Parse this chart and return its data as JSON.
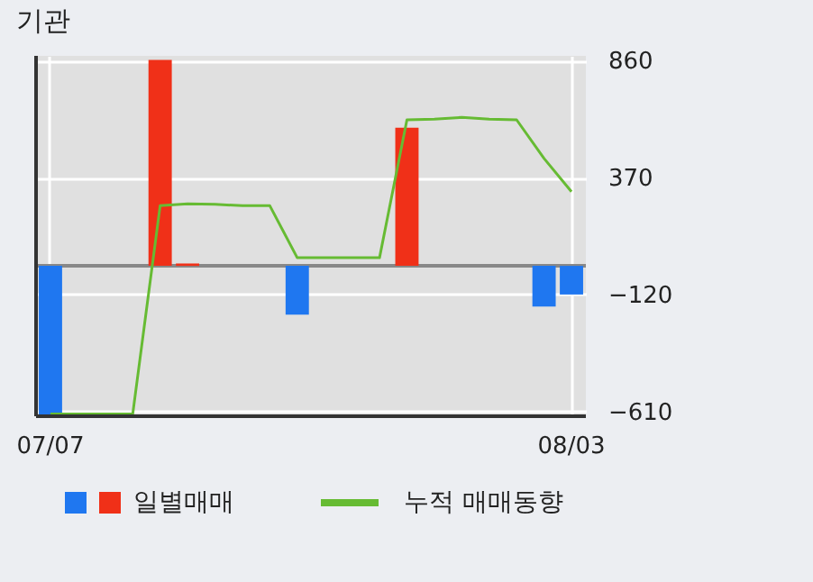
{
  "chart_data": {
    "type": "bar",
    "title": "기관",
    "categories": [
      "07/07",
      null,
      null,
      null,
      null,
      null,
      null,
      null,
      null,
      null,
      null,
      null,
      null,
      null,
      null,
      null,
      null,
      null,
      null,
      "08/03"
    ],
    "series": [
      {
        "name": "일별매매",
        "colors": [
          "#1f77f0",
          "#1f77f0",
          "#1f77f0",
          "#1f77f0",
          "#f03018",
          "#f03018",
          "#1f77f0",
          "#1f77f0",
          "#1f77f0",
          "#1f77f0",
          "#1f77f0",
          "#1f77f0",
          "#1f77f0",
          "#f03018",
          "#1f77f0",
          "#1f77f0",
          "#1f77f0",
          "#1f77f0",
          "#1f77f0",
          "#1f77f0"
        ],
        "values": [
          -625,
          0,
          0,
          0,
          863,
          10,
          0,
          0,
          0,
          -204,
          0,
          0,
          0,
          579,
          0,
          0,
          0,
          0,
          -170,
          -120
        ]
      },
      {
        "name": "누적 매매동향",
        "type": "line",
        "color": "#66bb33",
        "values": [
          -621,
          -621,
          -621,
          -621,
          252,
          260,
          258,
          252,
          252,
          34,
          34,
          34,
          34,
          612,
          615,
          622,
          615,
          612,
          450,
          311
        ]
      }
    ],
    "ylim": [
      -630,
      880
    ],
    "yticks": [
      860,
      370,
      -120,
      -610
    ],
    "grid": true,
    "legend": "bottom",
    "ref_lines": [
      {
        "axis": "y",
        "value": 0,
        "color": "#888888"
      }
    ]
  }
}
